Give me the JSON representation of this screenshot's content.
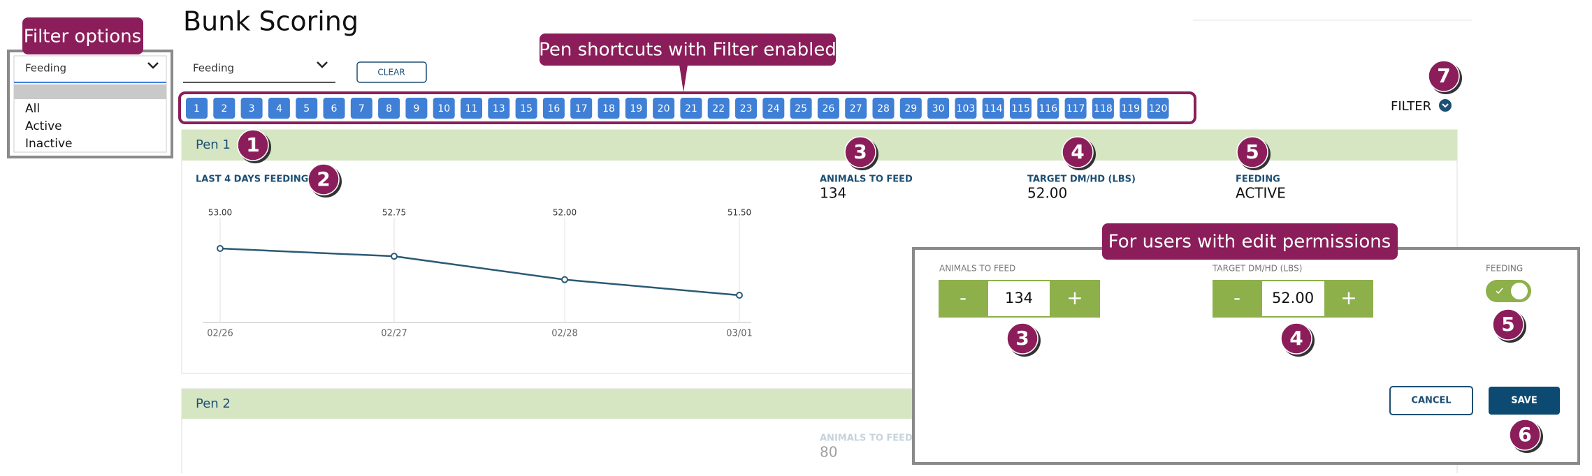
{
  "header": {
    "title": "Bunk Scoring"
  },
  "annotations": {
    "filter_options": "Filter options",
    "pen_shortcuts": "Pen shortcuts with Filter enabled",
    "edit_permissions": "For users with edit permissions"
  },
  "badges": [
    1,
    2,
    3,
    4,
    5,
    7,
    3,
    4,
    5,
    6
  ],
  "filter_dropdown": {
    "selected": "Feeding",
    "options": [
      "All",
      "Active",
      "Inactive"
    ]
  },
  "toolbar": {
    "dropdown": "Feeding",
    "clear": "CLEAR",
    "filter": "FILTER"
  },
  "pen_shortcuts": [
    1,
    2,
    3,
    4,
    5,
    6,
    7,
    8,
    9,
    10,
    11,
    13,
    15,
    16,
    17,
    18,
    19,
    20,
    21,
    22,
    23,
    24,
    25,
    26,
    27,
    28,
    29,
    30,
    103,
    114,
    115,
    116,
    117,
    118,
    119,
    120
  ],
  "pens": [
    {
      "name": "Pen 1",
      "chart": {
        "title": "LAST 4 DAYS FEEDINGS",
        "categories": [
          "02/26",
          "02/27",
          "02/28",
          "03/01"
        ],
        "values": [
          53,
          52.75,
          52,
          51.5
        ],
        "value_labels": [
          "53.00",
          "52.75",
          "52.00",
          "51.50"
        ]
      },
      "animals_label": "ANIMALS TO FEED",
      "animals": 134,
      "target_label": "TARGET DM/HD (LBS)",
      "target": "52.00",
      "feeding_label": "FEEDING",
      "feeding": "ACTIVE"
    },
    {
      "name": "Pen 2",
      "animals_label": "ANIMALS TO FEED",
      "animals": 80
    }
  ],
  "edit_panel": {
    "animals_label": "ANIMALS TO FEED",
    "animals": 134,
    "minus": "-",
    "plus": "+",
    "target_label": "TARGET DM/HD (LBS)",
    "target": "52.00",
    "feeding_label": "FEEDING",
    "cancel": "CANCEL",
    "save": "SAVE"
  }
}
